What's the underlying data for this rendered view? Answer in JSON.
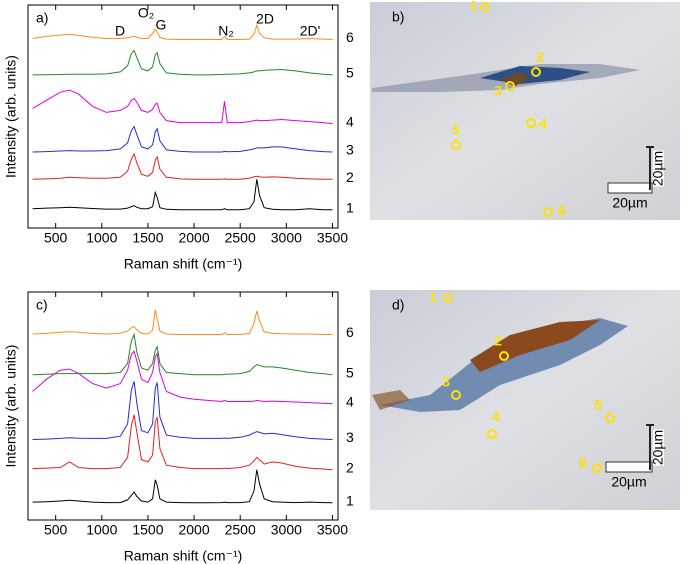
{
  "chart_data": [
    {
      "type": "line",
      "panel": "a)",
      "x_label": "Raman shift (cm⁻¹)",
      "y_label": "Intensity (arb. units)",
      "annotations": [
        "D",
        "O₂",
        "G",
        "N₂",
        "2D",
        "2D'"
      ],
      "x": [
        250,
        400,
        550,
        650,
        750,
        900,
        1050,
        1200,
        1280,
        1320,
        1350,
        1380,
        1430,
        1500,
        1550,
        1580,
        1600,
        1630,
        1700,
        1850,
        2000,
        2150,
        2300,
        2330,
        2360,
        2500,
        2600,
        2650,
        2680,
        2710,
        2760,
        2850,
        2950,
        3100,
        3250,
        3400,
        3500
      ],
      "xlim": [
        200,
        3560
      ],
      "xticks": [
        500,
        1000,
        1500,
        2000,
        2500,
        3000,
        3500
      ],
      "ylim": [
        0,
        11
      ],
      "series": [
        {
          "name": "1",
          "color": "#000000",
          "values": [
            0.95,
            0.98,
            1.0,
            1.02,
            1.0,
            0.96,
            0.93,
            0.93,
            0.98,
            1.05,
            1.1,
            1.02,
            0.95,
            0.95,
            1.05,
            1.75,
            1.5,
            1.0,
            0.92,
            0.9,
            0.9,
            0.9,
            0.9,
            0.95,
            0.9,
            0.9,
            0.95,
            1.3,
            2.4,
            1.6,
            1.0,
            0.92,
            0.9,
            0.9,
            0.95,
            0.9,
            0.9
          ]
        },
        {
          "name": "2",
          "color": "#e02020",
          "values": [
            2.4,
            2.42,
            2.45,
            2.5,
            2.48,
            2.45,
            2.45,
            2.5,
            2.8,
            3.4,
            3.65,
            3.2,
            2.65,
            2.55,
            2.75,
            3.35,
            3.5,
            2.9,
            2.5,
            2.42,
            2.4,
            2.4,
            2.4,
            2.42,
            2.4,
            2.4,
            2.45,
            2.52,
            2.55,
            2.52,
            2.5,
            2.52,
            2.5,
            2.45,
            2.42,
            2.4,
            2.4
          ]
        },
        {
          "name": "3",
          "color": "#2828e0",
          "values": [
            3.75,
            3.77,
            3.8,
            3.82,
            3.8,
            3.8,
            3.82,
            3.9,
            4.2,
            4.8,
            5.0,
            4.6,
            4.0,
            3.9,
            4.1,
            4.75,
            4.9,
            4.3,
            3.85,
            3.78,
            3.75,
            3.75,
            3.75,
            3.78,
            3.76,
            3.78,
            3.85,
            3.9,
            3.95,
            3.95,
            3.95,
            4.0,
            4.0,
            3.9,
            3.82,
            3.77,
            3.75
          ]
        },
        {
          "name": "4",
          "color": "#e000e0",
          "values": [
            5.9,
            6.3,
            6.7,
            6.8,
            6.6,
            6.0,
            5.7,
            5.8,
            6.0,
            6.3,
            6.4,
            6.2,
            5.8,
            5.7,
            5.85,
            6.1,
            6.15,
            5.7,
            5.3,
            5.2,
            5.2,
            5.2,
            5.2,
            6.25,
            5.2,
            5.2,
            5.25,
            5.3,
            5.32,
            5.3,
            5.3,
            5.32,
            5.35,
            5.3,
            5.25,
            5.2,
            5.15
          ]
        },
        {
          "name": "5",
          "color": "#208a20",
          "values": [
            7.55,
            7.56,
            7.57,
            7.58,
            7.58,
            7.58,
            7.6,
            7.7,
            8.0,
            8.6,
            8.75,
            8.4,
            7.85,
            7.75,
            7.95,
            8.55,
            8.65,
            8.1,
            7.65,
            7.58,
            7.55,
            7.55,
            7.57,
            7.58,
            7.58,
            7.6,
            7.65,
            7.7,
            7.75,
            7.75,
            7.78,
            7.8,
            7.82,
            7.75,
            7.65,
            7.58,
            7.55
          ]
        },
        {
          "name": "6",
          "color": "#ff8c1a",
          "values": [
            9.35,
            9.45,
            9.52,
            9.55,
            9.5,
            9.4,
            9.35,
            9.35,
            9.38,
            9.42,
            9.45,
            9.4,
            9.35,
            9.35,
            9.6,
            9.8,
            9.65,
            9.4,
            9.32,
            9.3,
            9.3,
            9.3,
            9.3,
            9.45,
            9.3,
            9.3,
            9.32,
            9.55,
            10.0,
            9.6,
            9.38,
            9.32,
            9.32,
            9.32,
            9.35,
            9.32,
            9.3
          ]
        }
      ]
    },
    {
      "type": "line",
      "panel": "c)",
      "x_label": "Raman shift (cm⁻¹)",
      "y_label": "Intensity (arb. units)",
      "x": [
        250,
        400,
        550,
        650,
        750,
        900,
        1050,
        1200,
        1280,
        1320,
        1350,
        1380,
        1430,
        1500,
        1550,
        1580,
        1600,
        1630,
        1700,
        1850,
        2000,
        2150,
        2300,
        2330,
        2360,
        2500,
        2600,
        2650,
        2680,
        2710,
        2760,
        2850,
        2950,
        3100,
        3250,
        3400,
        3500
      ],
      "xlim": [
        200,
        3560
      ],
      "xticks": [
        500,
        1000,
        1500,
        2000,
        2500,
        3000,
        3500
      ],
      "ylim": [
        0,
        10.2
      ],
      "series": [
        {
          "name": "1",
          "color": "#000000",
          "values": [
            0.8,
            0.82,
            0.85,
            0.88,
            0.85,
            0.8,
            0.78,
            0.78,
            0.9,
            1.1,
            1.25,
            1.05,
            0.85,
            0.8,
            0.95,
            1.8,
            1.55,
            0.95,
            0.8,
            0.78,
            0.77,
            0.77,
            0.78,
            0.8,
            0.78,
            0.78,
            0.82,
            1.3,
            2.25,
            1.6,
            0.95,
            0.82,
            0.8,
            0.78,
            0.8,
            0.78,
            0.77
          ]
        },
        {
          "name": "2",
          "color": "#e02020",
          "values": [
            2.3,
            2.32,
            2.35,
            2.6,
            2.35,
            2.3,
            2.3,
            2.35,
            2.8,
            4.2,
            4.7,
            3.9,
            2.7,
            2.6,
            2.9,
            4.4,
            4.6,
            3.2,
            2.45,
            2.35,
            2.3,
            2.3,
            2.3,
            2.32,
            2.3,
            2.35,
            2.45,
            2.65,
            2.8,
            2.7,
            2.5,
            2.6,
            2.55,
            2.4,
            2.32,
            2.28,
            2.25
          ]
        },
        {
          "name": "3",
          "color": "#2828e0",
          "values": [
            3.6,
            3.62,
            3.65,
            3.68,
            3.66,
            3.65,
            3.65,
            3.75,
            4.3,
            5.8,
            6.2,
            5.2,
            4.0,
            3.9,
            4.3,
            5.9,
            6.15,
            4.6,
            3.8,
            3.7,
            3.65,
            3.65,
            3.65,
            3.67,
            3.65,
            3.7,
            3.8,
            3.9,
            3.95,
            3.92,
            3.85,
            3.88,
            3.82,
            3.72,
            3.65,
            3.62,
            3.6
          ]
        },
        {
          "name": "4",
          "color": "#e000e0",
          "values": [
            5.75,
            6.3,
            6.7,
            6.75,
            6.55,
            6.1,
            5.9,
            6.1,
            6.7,
            7.4,
            7.55,
            7.1,
            6.3,
            6.15,
            6.6,
            7.3,
            7.45,
            6.6,
            5.75,
            5.5,
            5.4,
            5.35,
            5.3,
            5.35,
            5.3,
            5.3,
            5.3,
            5.32,
            5.35,
            5.33,
            5.3,
            5.32,
            5.3,
            5.28,
            5.25,
            5.22,
            5.2
          ]
        },
        {
          "name": "5",
          "color": "#208a20",
          "values": [
            6.5,
            6.52,
            6.55,
            6.55,
            6.55,
            6.55,
            6.55,
            6.6,
            7.0,
            8.0,
            8.3,
            7.5,
            6.8,
            6.7,
            7.0,
            7.6,
            7.75,
            7.0,
            6.6,
            6.55,
            6.5,
            6.5,
            6.5,
            6.52,
            6.52,
            6.55,
            6.65,
            6.85,
            6.95,
            6.92,
            6.85,
            6.85,
            6.8,
            6.7,
            6.6,
            6.55,
            6.5
          ]
        },
        {
          "name": "6",
          "color": "#ff8c1a",
          "values": [
            8.32,
            8.35,
            8.4,
            8.42,
            8.4,
            8.35,
            8.32,
            8.35,
            8.45,
            8.6,
            8.65,
            8.5,
            8.35,
            8.32,
            8.5,
            9.4,
            9.0,
            8.45,
            8.32,
            8.3,
            8.3,
            8.3,
            8.3,
            8.38,
            8.3,
            8.3,
            8.35,
            8.8,
            9.35,
            8.9,
            8.42,
            8.35,
            8.33,
            8.32,
            8.32,
            8.3,
            8.3
          ]
        }
      ]
    }
  ],
  "images": [
    {
      "label": "b)",
      "points": [
        "1",
        "2",
        "3",
        "4",
        "5",
        "6"
      ],
      "scale": "20µm",
      "scale_vertical": "20µm"
    },
    {
      "label": "d)",
      "points": [
        "1",
        "2",
        "3",
        "4",
        "5",
        "6"
      ],
      "scale": "20µm",
      "scale_vertical": "20µm"
    }
  ]
}
